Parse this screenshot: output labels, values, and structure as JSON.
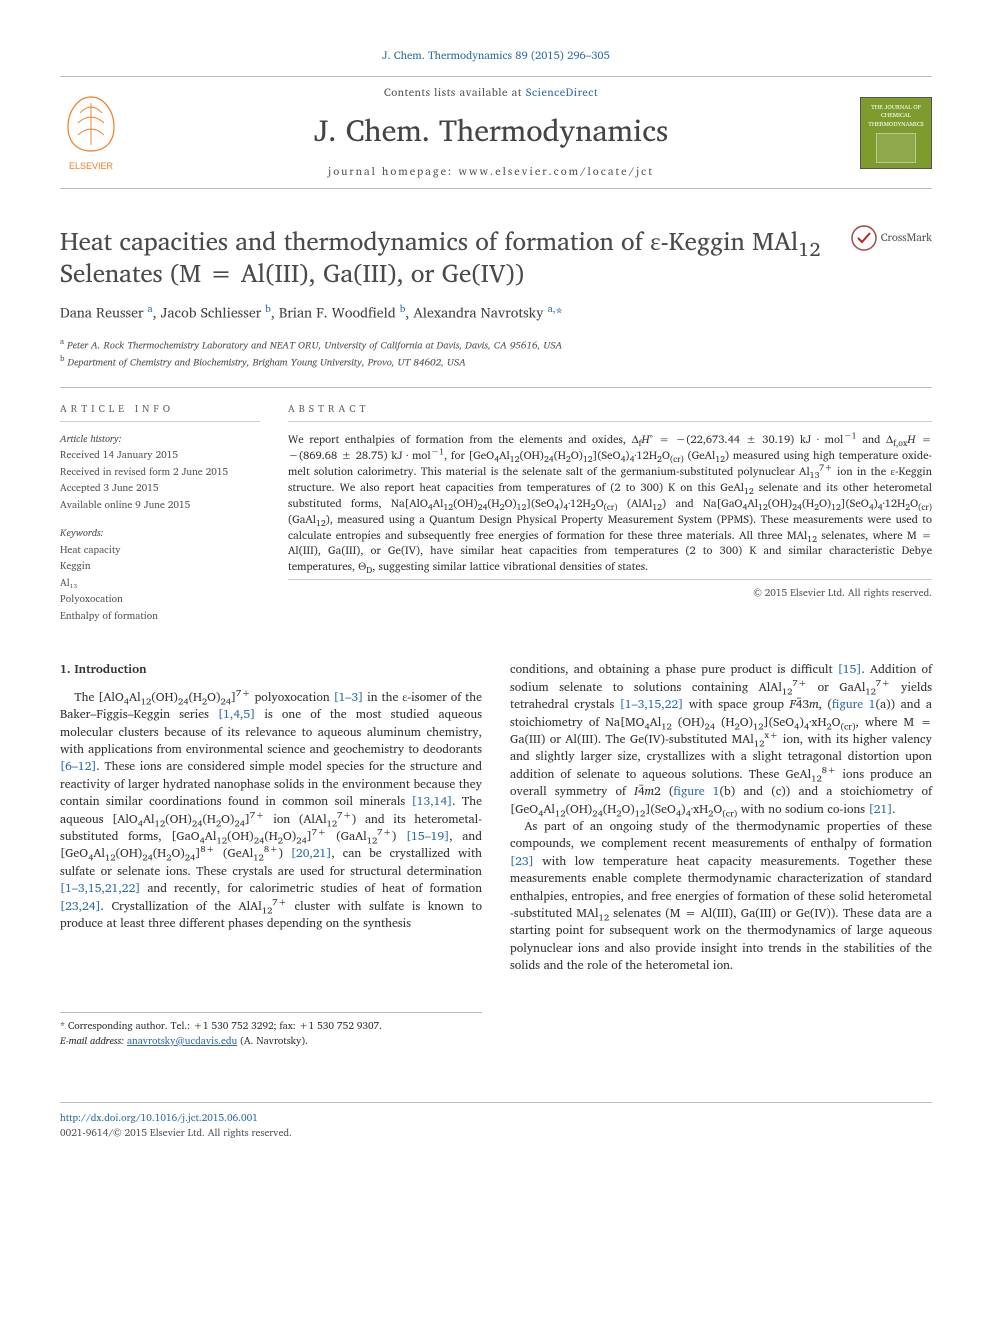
{
  "citation_line": "J. Chem. Thermodynamics 89 (2015) 296–305",
  "masthead": {
    "contents_prefix": "Contents lists available at ",
    "contents_link": "ScienceDirect",
    "journal_name": "J. Chem. Thermodynamics",
    "homepage_line": "journal homepage: www.elsevier.com/locate/jct",
    "publisher_name": "ELSEVIER",
    "jct_box_line1": "THE JOURNAL OF",
    "jct_box_line2": "CHEMICAL",
    "jct_box_line3": "THERMODYNAMICS",
    "colors": {
      "elsevier_orange": "#ef7d22",
      "jct_green": "#7e9b2e",
      "link_blue": "#2e6da4"
    }
  },
  "crossmark_label": "CrossMark",
  "title_html": "Heat capacities and thermodynamics of formation of ε-Keggin MAl<sub>12</sub> Selenates (M = Al(III), Ga(III), or Ge(IV))",
  "authors_html": "Dana Reusser <span class='aff-sup'>a</span>, Jacob Schliesser <span class='aff-sup'>b</span>, Brian F. Woodfield <span class='aff-sup'>b</span>, Alexandra Navrotsky <span class='aff-sup'>a,</span><span class='corr'>*</span>",
  "affiliations": [
    {
      "sup": "a",
      "text": "Peter A. Rock Thermochemistry Laboratory and NEAT ORU, University of California at Davis, Davis, CA 95616, USA"
    },
    {
      "sup": "b",
      "text": "Department of Chemistry and Biochemistry, Brigham Young University, Provo, UT 84602, USA"
    }
  ],
  "article_info": {
    "label": "ARTICLE INFO",
    "history_label": "Article history:",
    "history": [
      "Received 14 January 2015",
      "Received in revised form 2 June 2015",
      "Accepted 3 June 2015",
      "Available online 9 June 2015"
    ],
    "keywords_label": "Keywords:",
    "keywords": [
      "Heat capacity",
      "Keggin",
      "Al₁₃",
      "Polyoxocation",
      "Enthalpy of formation"
    ]
  },
  "abstract": {
    "label": "ABSTRACT",
    "text_html": "We report enthalpies of formation from the elements and oxides, Δ<sub>f</sub><i>H</i>° = −(22,673.44 ± 30.19) kJ · mol<sup>−1</sup> and Δ<sub>f,ox</sub><i>H</i> = −(869.68 ± 28.75) kJ · mol<sup>−1</sup>, for [GeO<sub>4</sub>Al<sub>12</sub>(OH)<sub>24</sub>(H<sub>2</sub>O)<sub>12</sub>](SeO<sub>4</sub>)<sub>4</sub>·12H<sub>2</sub>O<sub>(cr)</sub> (GeAl<sub>12</sub>) measured using high temperature oxide-melt solution calorimetry. This material is the selenate salt of the germanium-substituted polynuclear Al<sub>13</sub><sup>7+</sup> ion in the ε-Keggin structure. We also report heat capacities from temperatures of (2 to 300) K on this GeAl<sub>12</sub> selenate and its other heterometal substituted forms, Na[AlO<sub>4</sub>Al<sub>12</sub>(OH)<sub>24</sub>(H<sub>2</sub>O)<sub>12</sub>](SeO<sub>4</sub>)<sub>4</sub>·12H<sub>2</sub>O<sub>(cr)</sub> (AlAl<sub>12</sub>) and Na[GaO<sub>4</sub>Al<sub>12</sub>(OH)<sub>24</sub>(H<sub>2</sub>O)<sub>12</sub>](SeO<sub>4</sub>)<sub>4</sub>·12H<sub>2</sub>O<sub>(cr)</sub> (GaAl<sub>12</sub>), measured using a Quantum Design Physical Property Measurement System (PPMS). These measurements were used to calculate entropies and subsequently free energies of formation for these three materials. All three MAl<sub>12</sub> selenates, where M = Al(III), Ga(III), or Ge(IV), have similar heat capacities from temperatures (2 to 300) K and similar characteristic Debye temperatures, <i>Θ</i><sub>D</sub>, suggesting similar lattice vibrational densities of states.",
    "copyright": "© 2015 Elsevier Ltd. All rights reserved."
  },
  "body": {
    "section_heading": "1. Introduction",
    "col1_html": "The [AlO<sub>4</sub>Al<sub>12</sub>(OH)<sub>24</sub>(H<sub>2</sub>O)<sub>24</sub>]<sup>7+</sup> polyoxocation <span class='link'>[1–3]</span> in the ε-isomer of the Baker–Figgis–Keggin series <span class='link'>[1,4,5]</span> is one of the most studied aqueous molecular clusters because of its relevance to aqueous aluminum chemistry, with applications from environmental science and geochemistry to deodorants <span class='link'>[6–12]</span>. These ions are considered simple model species for the structure and reactivity of larger hydrated nanophase solids in the environment because they contain similar coordinations found in common soil minerals <span class='link'>[13,14]</span>. The aqueous [AlO<sub>4</sub>Al<sub>12</sub>(OH)<sub>24</sub>(H<sub>2</sub>O)<sub>24</sub>]<sup>7+</sup> ion (AlAl<sub>12</sub><sup>7+</sup>) and its heterometal-substituted forms, [GaO<sub>4</sub>Al<sub>12</sub>(OH)<sub>24</sub>(H<sub>2</sub>O)<sub>24</sub>]<sup>7+</sup> (GaAl<sub>12</sub><sup>7+</sup>) <span class='link'>[15–19]</span>, and [GeO<sub>4</sub>Al<sub>12</sub>(OH)<sub>24</sub>(H<sub>2</sub>O)<sub>24</sub>]<sup>8+</sup> (GeAl<sub>12</sub><sup>8+</sup>) <span class='link'>[20,21]</span>, can be crystallized with sulfate or selenate ions. These crystals are used for structural determination <span class='link'>[1–3,15,21,22]</span> and recently, for calorimetric studies of heat of formation <span class='link'>[23,24]</span>. Crystallization of the AlAl<sub>12</sub><sup>7+</sup> cluster with sulfate is known to produce at least three different phases depending on the synthesis",
    "col2_html_p1": "conditions, and obtaining a phase pure product is difficult <span class='link'>[15]</span>. Addition of sodium selenate to solutions containing AlAl<sub>12</sub><sup>7+</sup> or GaAl<sub>12</sub><sup>7+</sup> yields tetrahedral crystals <span class='link'>[1–3,15,22]</span> with space group <i>F</i>4̄3<i>m</i>, (<span class='link'>figure 1</span>(a)) and a stoichiometry of Na[MO<sub>4</sub>Al<sub>12</sub> (OH)<sub>24</sub> (H<sub>2</sub>O)<sub>12</sub>](SeO<sub>4</sub>)<sub>4</sub>·xH<sub>2</sub>O<sub>(cr)</sub>, where M = Ga(III) or Al(III). The Ge(IV)-substituted MAl<sub>12</sub><sup>x+</sup> ion, with its higher valency and slightly larger size, crystallizes with a slight tetragonal distortion upon addition of selenate to aqueous solutions. These GeAl<sub>12</sub><sup>8+</sup> ions produce an overall symmetry of <i>I</i>4̄<i>m</i>2 (<span class='link'>figure 1</span>(b) and (c)) and a stoichiometry of [GeO<sub>4</sub>Al<sub>12</sub>(OH)<sub>24</sub>(H<sub>2</sub>O)<sub>12</sub>](SeO<sub>4</sub>)<sub>4</sub>·xH<sub>2</sub>O<sub>(cr)</sub> with no sodium co-ions <span class='link'>[21]</span>.",
    "col2_html_p2": "As part of an ongoing study of the thermodynamic properties of these compounds, we complement recent measurements of enthalpy of formation <span class='link'>[23]</span> with low temperature heat capacity measurements. Together these measurements enable complete thermodynamic characterization of standard enthalpies, entropies, and free energies of formation of these solid heterometal -substituted MAl<sub>12</sub> selenates (M = Al(III), Ga(III) or Ge(IV)). These data are a starting point for subsequent work on the thermodynamics of large aqueous polynuclear ions and also provide insight into trends in the stabilities of the solids and the role of the heterometal ion."
  },
  "corresponding": {
    "note": "* Corresponding author. Tel.: +1 530 752 3292; fax: +1 530 752 9307.",
    "email_label": "E-mail address:",
    "email": "anavrotsky@ucdavis.edu",
    "email_of": "(A. Navrotsky)."
  },
  "footer": {
    "doi": "http://dx.doi.org/10.1016/j.jct.2015.06.001",
    "issn_line": "0021-9614/© 2015 Elsevier Ltd. All rights reserved."
  }
}
